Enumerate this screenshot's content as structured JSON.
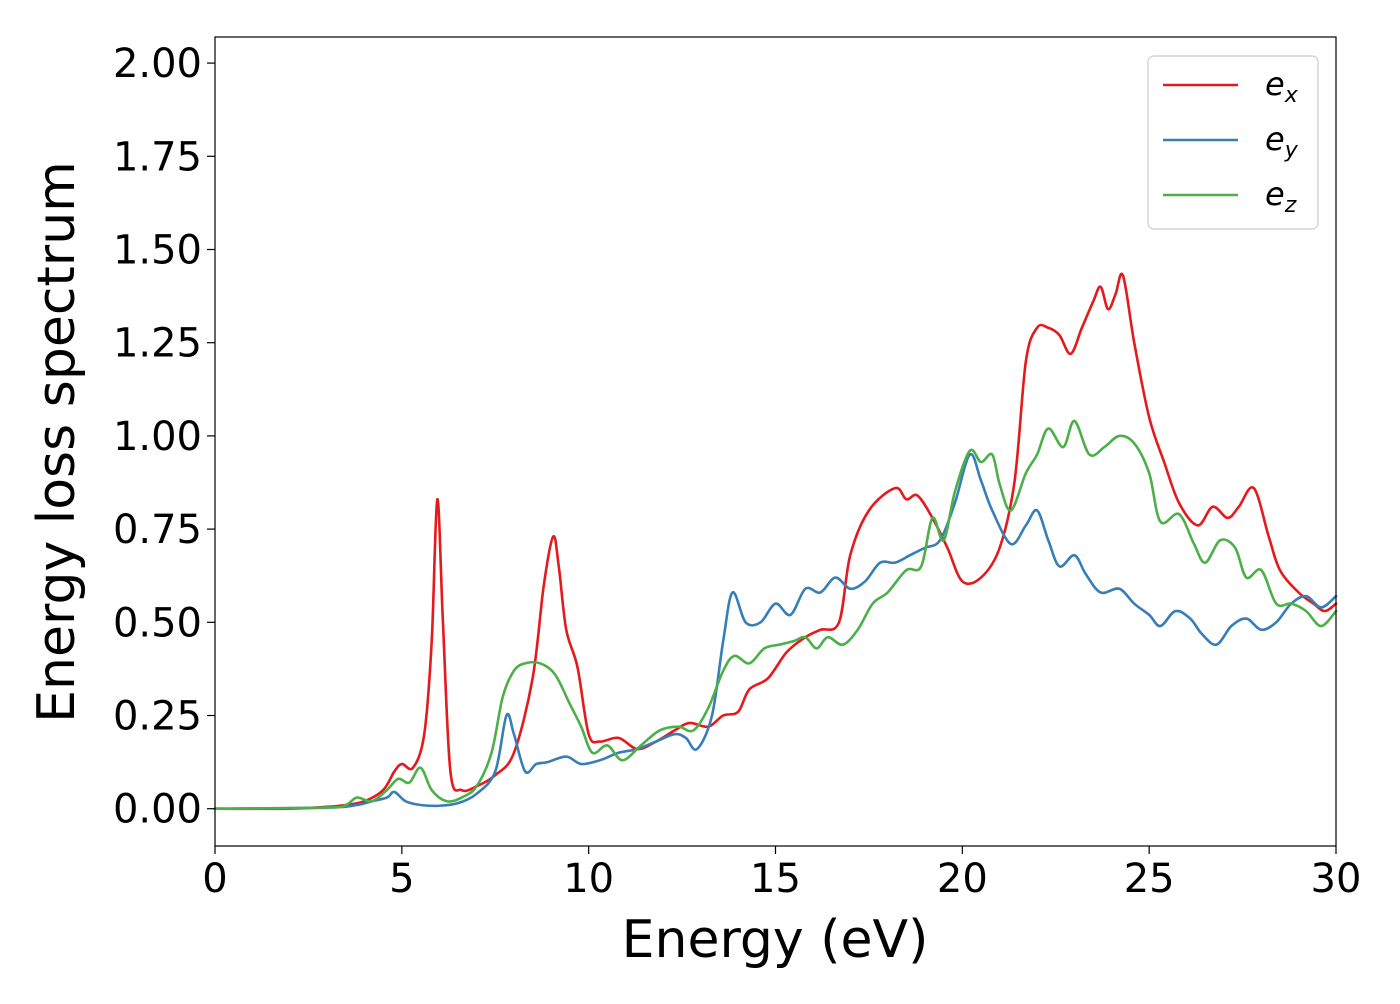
{
  "chart_data": {
    "type": "line",
    "xlabel": "Energy (eV)",
    "ylabel": "Energy loss spectrum",
    "xlim": [
      0,
      30
    ],
    "ylim": [
      -0.1,
      2.07
    ],
    "x_ticks": [
      0,
      5,
      10,
      15,
      20,
      25,
      30
    ],
    "x_tick_labels": [
      "0",
      "5",
      "10",
      "15",
      "20",
      "25",
      "30"
    ],
    "y_ticks": [
      0,
      0.25,
      0.5,
      0.75,
      1.0,
      1.25,
      1.5,
      1.75,
      2.0
    ],
    "y_tick_labels": [
      "0.00",
      "0.25",
      "0.50",
      "0.75",
      "1.00",
      "1.25",
      "1.50",
      "1.75",
      "2.00"
    ],
    "grid": false,
    "legend_position": "top-right",
    "series": [
      {
        "name": "e_x",
        "label_base": "e",
        "label_sub": "x",
        "color": "#e41a1c",
        "points": [
          [
            0,
            0
          ],
          [
            2,
            0
          ],
          [
            3,
            0.005
          ],
          [
            3.5,
            0.01
          ],
          [
            4,
            0.02
          ],
          [
            4.5,
            0.05
          ],
          [
            4.8,
            0.1
          ],
          [
            5,
            0.12
          ],
          [
            5.3,
            0.11
          ],
          [
            5.6,
            0.2
          ],
          [
            5.8,
            0.45
          ],
          [
            5.95,
            0.83
          ],
          [
            6.1,
            0.5
          ],
          [
            6.3,
            0.1
          ],
          [
            6.6,
            0.05
          ],
          [
            7,
            0.06
          ],
          [
            7.5,
            0.09
          ],
          [
            8,
            0.15
          ],
          [
            8.5,
            0.35
          ],
          [
            8.8,
            0.6
          ],
          [
            9.05,
            0.73
          ],
          [
            9.2,
            0.65
          ],
          [
            9.4,
            0.48
          ],
          [
            9.7,
            0.38
          ],
          [
            10,
            0.2
          ],
          [
            10.3,
            0.18
          ],
          [
            10.8,
            0.19
          ],
          [
            11.3,
            0.16
          ],
          [
            11.8,
            0.18
          ],
          [
            12.3,
            0.21
          ],
          [
            12.7,
            0.23
          ],
          [
            13.2,
            0.22
          ],
          [
            13.6,
            0.25
          ],
          [
            14,
            0.26
          ],
          [
            14.3,
            0.32
          ],
          [
            14.8,
            0.35
          ],
          [
            15.3,
            0.42
          ],
          [
            15.8,
            0.46
          ],
          [
            16.2,
            0.48
          ],
          [
            16.7,
            0.5
          ],
          [
            17,
            0.68
          ],
          [
            17.5,
            0.8
          ],
          [
            18.2,
            0.86
          ],
          [
            18.5,
            0.83
          ],
          [
            18.8,
            0.84
          ],
          [
            19.2,
            0.78
          ],
          [
            19.6,
            0.7
          ],
          [
            20,
            0.61
          ],
          [
            20.5,
            0.62
          ],
          [
            21,
            0.7
          ],
          [
            21.4,
            0.88
          ],
          [
            21.7,
            1.2
          ],
          [
            22,
            1.29
          ],
          [
            22.3,
            1.29
          ],
          [
            22.6,
            1.27
          ],
          [
            22.9,
            1.22
          ],
          [
            23.2,
            1.29
          ],
          [
            23.5,
            1.36
          ],
          [
            23.7,
            1.4
          ],
          [
            23.9,
            1.34
          ],
          [
            24.1,
            1.38
          ],
          [
            24.3,
            1.43
          ],
          [
            24.6,
            1.25
          ],
          [
            25,
            1.05
          ],
          [
            25.4,
            0.93
          ],
          [
            25.8,
            0.82
          ],
          [
            26.3,
            0.76
          ],
          [
            26.7,
            0.81
          ],
          [
            27.1,
            0.78
          ],
          [
            27.4,
            0.81
          ],
          [
            27.8,
            0.86
          ],
          [
            28.2,
            0.73
          ],
          [
            28.5,
            0.64
          ],
          [
            29,
            0.58
          ],
          [
            29.4,
            0.55
          ],
          [
            29.7,
            0.53
          ],
          [
            30,
            0.55
          ]
        ]
      },
      {
        "name": "e_y",
        "label_base": "e",
        "label_sub": "y",
        "color": "#377eb8",
        "points": [
          [
            0,
            0
          ],
          [
            3,
            0.003
          ],
          [
            3.8,
            0.01
          ],
          [
            4.2,
            0.02
          ],
          [
            4.6,
            0.03
          ],
          [
            4.8,
            0.045
          ],
          [
            5.1,
            0.02
          ],
          [
            5.5,
            0.01
          ],
          [
            6,
            0.008
          ],
          [
            6.5,
            0.015
          ],
          [
            7,
            0.04
          ],
          [
            7.5,
            0.1
          ],
          [
            7.8,
            0.25
          ],
          [
            8,
            0.2
          ],
          [
            8.3,
            0.1
          ],
          [
            8.6,
            0.12
          ],
          [
            8.9,
            0.125
          ],
          [
            9.4,
            0.14
          ],
          [
            9.8,
            0.12
          ],
          [
            10.3,
            0.13
          ],
          [
            10.8,
            0.15
          ],
          [
            11.3,
            0.16
          ],
          [
            11.8,
            0.18
          ],
          [
            12.3,
            0.2
          ],
          [
            12.6,
            0.19
          ],
          [
            12.9,
            0.16
          ],
          [
            13.3,
            0.25
          ],
          [
            13.6,
            0.45
          ],
          [
            13.85,
            0.58
          ],
          [
            14.2,
            0.5
          ],
          [
            14.6,
            0.5
          ],
          [
            15,
            0.55
          ],
          [
            15.4,
            0.52
          ],
          [
            15.8,
            0.59
          ],
          [
            16.2,
            0.58
          ],
          [
            16.6,
            0.62
          ],
          [
            17,
            0.59
          ],
          [
            17.4,
            0.61
          ],
          [
            17.8,
            0.66
          ],
          [
            18.2,
            0.66
          ],
          [
            18.6,
            0.68
          ],
          [
            19,
            0.7
          ],
          [
            19.4,
            0.72
          ],
          [
            19.8,
            0.82
          ],
          [
            20.2,
            0.95
          ],
          [
            20.5,
            0.88
          ],
          [
            20.8,
            0.8
          ],
          [
            21.3,
            0.71
          ],
          [
            21.7,
            0.76
          ],
          [
            22,
            0.8
          ],
          [
            22.3,
            0.72
          ],
          [
            22.6,
            0.65
          ],
          [
            23,
            0.68
          ],
          [
            23.3,
            0.63
          ],
          [
            23.7,
            0.58
          ],
          [
            24.2,
            0.59
          ],
          [
            24.6,
            0.55
          ],
          [
            25,
            0.52
          ],
          [
            25.3,
            0.49
          ],
          [
            25.7,
            0.53
          ],
          [
            26.1,
            0.51
          ],
          [
            26.4,
            0.47
          ],
          [
            26.8,
            0.44
          ],
          [
            27.2,
            0.49
          ],
          [
            27.6,
            0.51
          ],
          [
            28,
            0.48
          ],
          [
            28.4,
            0.5
          ],
          [
            28.8,
            0.55
          ],
          [
            29.2,
            0.57
          ],
          [
            29.6,
            0.54
          ],
          [
            30,
            0.57
          ]
        ]
      },
      {
        "name": "e_z",
        "label_base": "e",
        "label_sub": "z",
        "color": "#4daf4a",
        "points": [
          [
            0,
            0
          ],
          [
            3,
            0.003
          ],
          [
            3.5,
            0.01
          ],
          [
            3.8,
            0.03
          ],
          [
            4.2,
            0.02
          ],
          [
            4.6,
            0.05
          ],
          [
            4.9,
            0.08
          ],
          [
            5.2,
            0.07
          ],
          [
            5.5,
            0.11
          ],
          [
            5.8,
            0.05
          ],
          [
            6.2,
            0.02
          ],
          [
            6.6,
            0.03
          ],
          [
            7,
            0.06
          ],
          [
            7.4,
            0.15
          ],
          [
            7.7,
            0.3
          ],
          [
            8,
            0.37
          ],
          [
            8.3,
            0.39
          ],
          [
            8.7,
            0.39
          ],
          [
            9.1,
            0.36
          ],
          [
            9.5,
            0.28
          ],
          [
            9.8,
            0.22
          ],
          [
            10.1,
            0.15
          ],
          [
            10.5,
            0.17
          ],
          [
            10.9,
            0.13
          ],
          [
            11.4,
            0.17
          ],
          [
            11.9,
            0.21
          ],
          [
            12.4,
            0.22
          ],
          [
            12.8,
            0.21
          ],
          [
            13.2,
            0.27
          ],
          [
            13.6,
            0.37
          ],
          [
            13.9,
            0.41
          ],
          [
            14.3,
            0.39
          ],
          [
            14.7,
            0.43
          ],
          [
            15.1,
            0.44
          ],
          [
            15.5,
            0.45
          ],
          [
            15.8,
            0.46
          ],
          [
            16.1,
            0.43
          ],
          [
            16.4,
            0.46
          ],
          [
            16.8,
            0.44
          ],
          [
            17.2,
            0.48
          ],
          [
            17.6,
            0.55
          ],
          [
            18,
            0.58
          ],
          [
            18.5,
            0.64
          ],
          [
            18.9,
            0.65
          ],
          [
            19.2,
            0.78
          ],
          [
            19.5,
            0.72
          ],
          [
            19.8,
            0.85
          ],
          [
            20.2,
            0.96
          ],
          [
            20.5,
            0.93
          ],
          [
            20.8,
            0.95
          ],
          [
            21,
            0.87
          ],
          [
            21.3,
            0.8
          ],
          [
            21.7,
            0.9
          ],
          [
            22,
            0.95
          ],
          [
            22.3,
            1.02
          ],
          [
            22.7,
            0.97
          ],
          [
            23,
            1.04
          ],
          [
            23.4,
            0.95
          ],
          [
            23.8,
            0.97
          ],
          [
            24.2,
            1.0
          ],
          [
            24.6,
            0.98
          ],
          [
            25,
            0.9
          ],
          [
            25.3,
            0.77
          ],
          [
            25.8,
            0.79
          ],
          [
            26.2,
            0.71
          ],
          [
            26.5,
            0.66
          ],
          [
            26.9,
            0.72
          ],
          [
            27.3,
            0.7
          ],
          [
            27.6,
            0.62
          ],
          [
            28,
            0.64
          ],
          [
            28.4,
            0.55
          ],
          [
            28.8,
            0.55
          ],
          [
            29.2,
            0.53
          ],
          [
            29.6,
            0.49
          ],
          [
            30,
            0.53
          ]
        ]
      }
    ]
  }
}
